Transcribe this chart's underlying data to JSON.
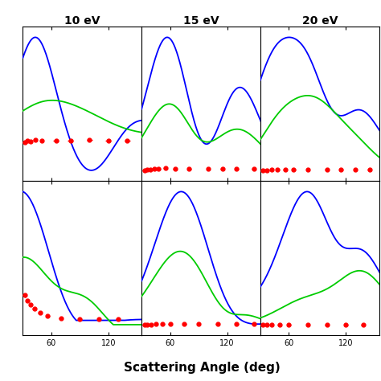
{
  "titles": [
    "10 eV",
    "15 eV",
    "20 eV"
  ],
  "blue_color": "#0000ff",
  "green_color": "#00cc00",
  "red_color": "#ff0000",
  "bg_color": "#ffffff",
  "xlabel": "Scattering Angle (deg)",
  "panel_rows": 2,
  "panel_cols": 3,
  "xlim": [
    30,
    155
  ],
  "xticks": [
    60,
    120
  ]
}
